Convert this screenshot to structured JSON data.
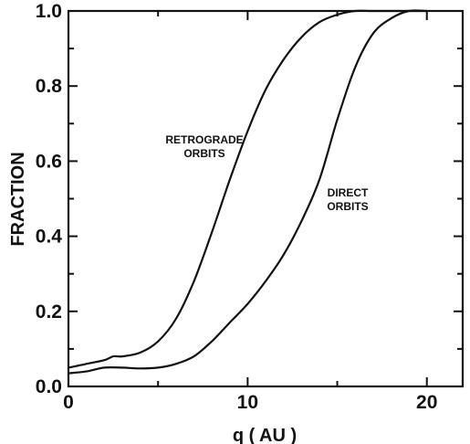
{
  "chart_data": {
    "type": "line",
    "xlabel": "q ( AU )",
    "ylabel": "FRACTION",
    "xlim": [
      0,
      22
    ],
    "ylim": [
      0,
      1.0
    ],
    "x_ticks": [
      0,
      10,
      20
    ],
    "y_ticks": [
      0.0,
      0.2,
      0.4,
      0.6,
      0.8,
      1.0
    ],
    "x_tick_labels": [
      "0",
      "10",
      "20"
    ],
    "y_tick_labels": [
      "0.0",
      "0.2",
      "0.4",
      "0.6",
      "0.8",
      "1.0"
    ],
    "grid": false,
    "series": [
      {
        "name": "RETROGRADE ORBITS",
        "x": [
          0,
          1,
          2,
          2.5,
          3,
          4,
          5,
          6,
          7,
          8,
          9,
          10,
          11,
          12,
          13,
          14,
          15,
          16,
          17,
          18,
          19,
          20
        ],
        "y": [
          0.05,
          0.06,
          0.07,
          0.08,
          0.08,
          0.09,
          0.12,
          0.18,
          0.28,
          0.41,
          0.55,
          0.68,
          0.79,
          0.87,
          0.93,
          0.97,
          0.99,
          1.0,
          1.0,
          1.0,
          1.0,
          1.0
        ]
      },
      {
        "name": "DIRECT ORBITS",
        "x": [
          0,
          1,
          2,
          3,
          4,
          5,
          6,
          7,
          8,
          9,
          10,
          11,
          12,
          13,
          14,
          15,
          16,
          17,
          18,
          19,
          20
        ],
        "y": [
          0.035,
          0.04,
          0.05,
          0.05,
          0.048,
          0.05,
          0.06,
          0.08,
          0.12,
          0.17,
          0.22,
          0.28,
          0.35,
          0.44,
          0.55,
          0.71,
          0.85,
          0.94,
          0.98,
          1.0,
          1.0
        ]
      }
    ],
    "annotations": [
      {
        "lines": [
          "RETROGRADE",
          "ORBITS"
        ],
        "series": "RETROGRADE ORBITS"
      },
      {
        "lines": [
          "DIRECT",
          "ORBITS"
        ],
        "series": "DIRECT ORBITS"
      }
    ]
  }
}
